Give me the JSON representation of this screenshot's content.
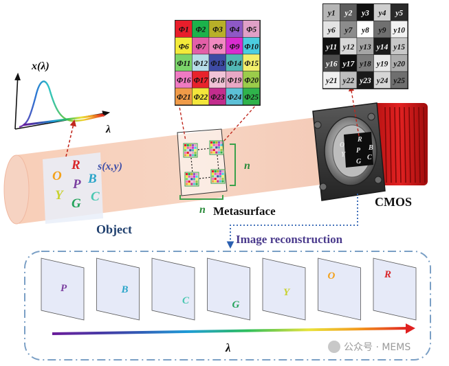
{
  "spectrum_plot": {
    "y_label": "x(λ)",
    "x_label": "λ"
  },
  "object": {
    "label": "Object",
    "field_label": "s(x,y)",
    "letters": [
      {
        "ch": "O",
        "color": "#f3a11a"
      },
      {
        "ch": "R",
        "color": "#d9262a"
      },
      {
        "ch": "B",
        "color": "#2aa5c9"
      },
      {
        "ch": "Y",
        "color": "#c8d12e"
      },
      {
        "ch": "P",
        "color": "#7b3fa0"
      },
      {
        "ch": "C",
        "color": "#49c7b1"
      },
      {
        "ch": "G",
        "color": "#23a35a"
      }
    ]
  },
  "metasurface": {
    "label": "Metasurface",
    "n_right": "n",
    "n_bottom": "n",
    "filters": [
      "Φ1",
      "Φ2",
      "Φ3",
      "Φ4",
      "Φ5",
      "Φ6",
      "Φ7",
      "Φ8",
      "Φ9",
      "Φ10",
      "Φ11",
      "Φ12",
      "Φ13",
      "Φ14",
      "Φ15",
      "Φ16",
      "Φ17",
      "Φ18",
      "Φ19",
      "Φ20",
      "Φ21",
      "Φ22",
      "Φ23",
      "Φ24",
      "Φ25"
    ],
    "filter_colors": [
      "#e81e2b",
      "#1cb24b",
      "#b8b028",
      "#8e59c6",
      "#e0a0c7",
      "#f3ea3a",
      "#e35fa8",
      "#f089c0",
      "#d92ccf",
      "#4bcde0",
      "#7bd46a",
      "#b7dde9",
      "#3e4ba4",
      "#52b7b4",
      "#f3f06c",
      "#ef7ac2",
      "#e8232b",
      "#f1c3d6",
      "#e9a8c5",
      "#9bcc4a",
      "#f09b48",
      "#f3e63b",
      "#c32d8d",
      "#5cc0d7",
      "#2fb34b"
    ]
  },
  "sensor": {
    "label": "CMOS",
    "outputs": [
      "y1",
      "y2",
      "y3",
      "y4",
      "y5",
      "y6",
      "y7",
      "y8",
      "y9",
      "y10",
      "y11",
      "y12",
      "y13",
      "y14",
      "y15",
      "y16",
      "y17",
      "y18",
      "y19",
      "y20",
      "y21",
      "y22",
      "y23",
      "y24",
      "y25"
    ],
    "gray_levels": [
      "#b5b5b5",
      "#5d5d5d",
      "#111111",
      "#cfcfcf",
      "#2a2a2a",
      "#e4e4e4",
      "#8c8c8c",
      "#ffffff",
      "#707070",
      "#f2f2f2",
      "#101010",
      "#d8d8d8",
      "#a5a5a5",
      "#1b1b1b",
      "#c8c8c8",
      "#4c4c4c",
      "#0e0e0e",
      "#7d7d7d",
      "#e9e9e9",
      "#adadad",
      "#f0f0f0",
      "#bdbdbd",
      "#1a1a1a",
      "#d6d6d6",
      "#6f6f6f"
    ]
  },
  "reconstruction": {
    "label": "Image reconstruction",
    "axis_label": "λ",
    "frames": [
      {
        "ch": "P",
        "color": "#7b3fa0"
      },
      {
        "ch": "B",
        "color": "#2aa5c9"
      },
      {
        "ch": "C",
        "color": "#49c7b1"
      },
      {
        "ch": "G",
        "color": "#23a35a"
      },
      {
        "ch": "Y",
        "color": "#c8d12e"
      },
      {
        "ch": "O",
        "color": "#f3a11a"
      },
      {
        "ch": "R",
        "color": "#d9262a"
      }
    ]
  },
  "watermark": "公众号 · MEMS"
}
